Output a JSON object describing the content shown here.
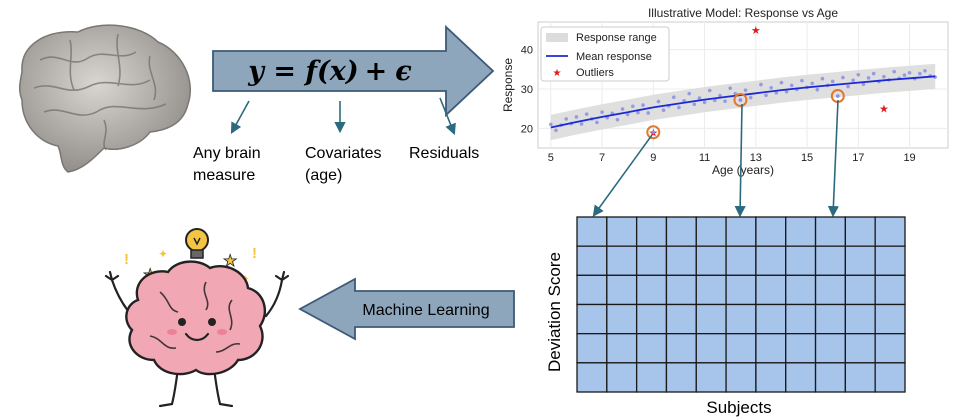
{
  "equation": {
    "y": "y",
    "eq": " = ",
    "f": "f",
    "x_arg": "(x)",
    "plus": "+",
    "epsilon": "ϵ"
  },
  "labels": {
    "brain_measure_line1": "Any brain",
    "brain_measure_line2": "measure",
    "covariates_line1": "Covariates",
    "covariates_line2": "(age)",
    "residuals": "Residuals",
    "machine_learning": "Machine Learning",
    "deviation_score": "Deviation Score",
    "subjects": "Subjects"
  },
  "grid": {
    "rows": 6,
    "cols": 11
  },
  "colors": {
    "arrow_fill": "#8ea6bc",
    "arrow_stroke": "#3c5a78",
    "grid_fill": "#a7c4ea",
    "grid_stroke": "#1a1a1a",
    "pointer": "#2b6a7f",
    "band": "#dcdcdc",
    "mean_line": "#1a2ad6",
    "points": "#8a8ee0",
    "outlier": "#e01b1b",
    "ring": "#e0782e"
  },
  "chart_data": {
    "type": "scatter",
    "title": "Illustrative Model: Response vs Age",
    "xlabel": "Age (years)",
    "ylabel": "Response",
    "xlim": [
      4.5,
      20.5
    ],
    "ylim": [
      15,
      47
    ],
    "xticks": [
      5,
      7,
      9,
      11,
      13,
      15,
      17,
      19
    ],
    "yticks": [
      20,
      30,
      40
    ],
    "grid": true,
    "legend_position": "top-left",
    "legend": [
      "Response range",
      "Mean response",
      "Outliers"
    ],
    "mean_curve": {
      "x": [
        5,
        6,
        7,
        8,
        9,
        10,
        11,
        12,
        13,
        14,
        15,
        16,
        17,
        18,
        19,
        20
      ],
      "y": [
        20.2,
        21.6,
        22.9,
        24.1,
        25.3,
        26.3,
        27.3,
        28.1,
        28.9,
        29.7,
        30.4,
        31.0,
        31.6,
        32.2,
        32.7,
        33.2
      ]
    },
    "range_band": {
      "x": [
        5,
        6,
        7,
        8,
        9,
        10,
        11,
        12,
        13,
        14,
        15,
        16,
        17,
        18,
        19,
        20
      ],
      "lower": [
        17.0,
        18.4,
        19.7,
        20.9,
        22.1,
        23.1,
        24.1,
        24.9,
        25.7,
        26.5,
        27.2,
        27.8,
        28.4,
        29.0,
        29.5,
        30.0
      ],
      "upper": [
        23.4,
        24.8,
        26.1,
        27.3,
        28.5,
        29.5,
        30.5,
        31.3,
        32.1,
        32.9,
        33.6,
        34.2,
        34.8,
        35.4,
        35.9,
        36.4
      ]
    },
    "points": {
      "x": [
        5.0,
        5.2,
        5.4,
        5.6,
        5.8,
        6.0,
        6.2,
        6.4,
        6.6,
        6.8,
        7.0,
        7.2,
        7.4,
        7.6,
        7.8,
        8.0,
        8.2,
        8.4,
        8.6,
        8.8,
        9.2,
        9.4,
        9.6,
        9.8,
        10.0,
        10.2,
        10.4,
        10.6,
        10.8,
        11.0,
        11.2,
        11.4,
        11.6,
        11.8,
        12.0,
        12.2,
        12.6,
        12.8,
        13.2,
        13.4,
        13.6,
        13.8,
        14.0,
        14.2,
        14.4,
        14.6,
        14.8,
        15.0,
        15.2,
        15.4,
        15.6,
        15.8,
        16.0,
        16.4,
        16.6,
        16.8,
        17.0,
        17.2,
        17.4,
        17.6,
        17.8,
        18.0,
        18.2,
        18.4,
        18.6,
        18.8,
        19.0,
        19.2,
        19.4,
        19.6,
        19.8,
        20.0
      ],
      "y": [
        21.0,
        19.5,
        20.8,
        22.4,
        21.2,
        22.9,
        21.1,
        23.6,
        22.4,
        21.5,
        24.1,
        22.7,
        23.8,
        22.2,
        24.9,
        23.5,
        25.6,
        24.0,
        25.9,
        23.9,
        26.8,
        24.6,
        25.7,
        27.9,
        25.3,
        27.0,
        28.8,
        26.1,
        27.7,
        26.6,
        29.6,
        27.1,
        28.3,
        26.9,
        30.2,
        28.8,
        29.7,
        27.8,
        31.1,
        28.4,
        30.3,
        29.0,
        31.6,
        29.3,
        30.9,
        29.9,
        32.1,
        30.4,
        31.4,
        29.8,
        32.6,
        30.9,
        31.9,
        32.9,
        30.6,
        32.2,
        33.6,
        31.2,
        32.8,
        33.9,
        31.9,
        33.1,
        32.3,
        34.4,
        32.7,
        33.5,
        34.1,
        32.6,
        33.9,
        34.6,
        33.3,
        33.0
      ]
    },
    "outliers": [
      {
        "x": 9.0,
        "y": 19.0
      },
      {
        "x": 13.0,
        "y": 45.0
      },
      {
        "x": 18.0,
        "y": 25.0
      }
    ],
    "highlighted_points": [
      {
        "x": 9.0,
        "y": 19.0
      },
      {
        "x": 12.4,
        "y": 27.2
      },
      {
        "x": 16.2,
        "y": 28.2
      }
    ]
  }
}
